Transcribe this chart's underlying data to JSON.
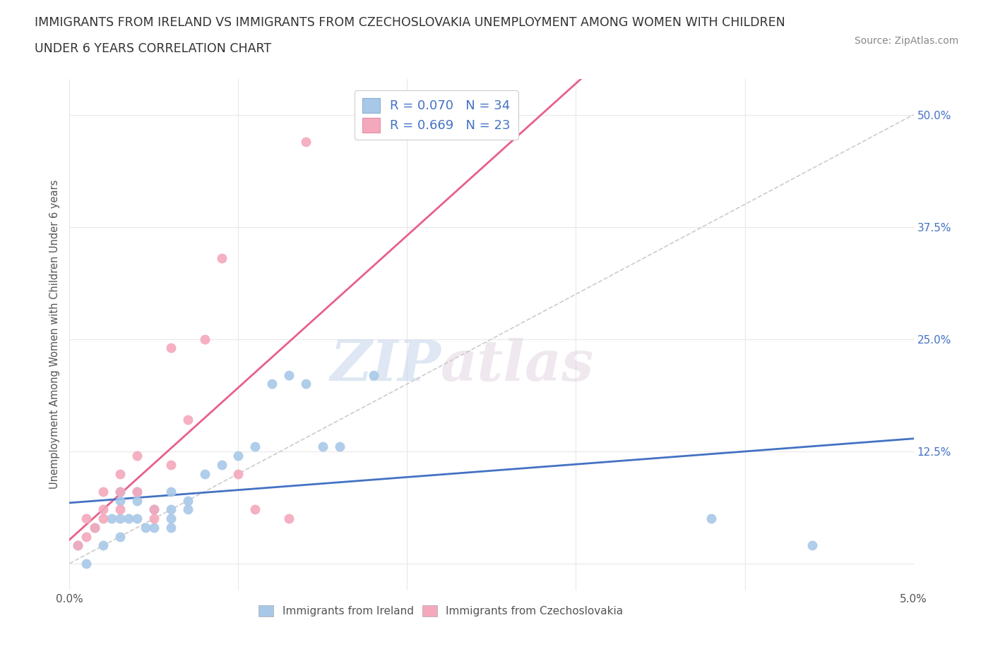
{
  "title_line1": "IMMIGRANTS FROM IRELAND VS IMMIGRANTS FROM CZECHOSLOVAKIA UNEMPLOYMENT AMONG WOMEN WITH CHILDREN",
  "title_line2": "UNDER 6 YEARS CORRELATION CHART",
  "source": "Source: ZipAtlas.com",
  "ylabel": "Unemployment Among Women with Children Under 6 years",
  "xlim": [
    0.0,
    0.05
  ],
  "ylim": [
    -0.03,
    0.54
  ],
  "xticks": [
    0.0,
    0.01,
    0.02,
    0.03,
    0.04,
    0.05
  ],
  "xtick_labels": [
    "0.0%",
    "",
    "",
    "",
    "",
    "5.0%"
  ],
  "yticks": [
    0.0,
    0.125,
    0.25,
    0.375,
    0.5
  ],
  "ytick_labels": [
    "",
    "12.5%",
    "25.0%",
    "37.5%",
    "50.0%"
  ],
  "ireland_color": "#a8c8e8",
  "czechoslovakia_color": "#f4a8bc",
  "ireland_line_color": "#4472c4",
  "czechoslovakia_line_color": "#e8608a",
  "watermark_zip": "ZIP",
  "watermark_atlas": "atlas",
  "ireland_R": 0.07,
  "ireland_N": 34,
  "czechoslovakia_R": 0.669,
  "czechoslovakia_N": 23,
  "ireland_scatter_x": [
    0.0005,
    0.001,
    0.0015,
    0.002,
    0.0025,
    0.003,
    0.003,
    0.003,
    0.003,
    0.0035,
    0.004,
    0.004,
    0.004,
    0.0045,
    0.005,
    0.005,
    0.006,
    0.006,
    0.006,
    0.006,
    0.007,
    0.007,
    0.008,
    0.009,
    0.01,
    0.011,
    0.012,
    0.013,
    0.014,
    0.015,
    0.016,
    0.018,
    0.038,
    0.044
  ],
  "ireland_scatter_y": [
    0.02,
    0.0,
    0.04,
    0.02,
    0.05,
    0.03,
    0.05,
    0.07,
    0.08,
    0.05,
    0.05,
    0.07,
    0.08,
    0.04,
    0.04,
    0.06,
    0.04,
    0.05,
    0.06,
    0.08,
    0.06,
    0.07,
    0.1,
    0.11,
    0.12,
    0.13,
    0.2,
    0.21,
    0.2,
    0.13,
    0.13,
    0.21,
    0.05,
    0.02
  ],
  "czechoslovakia_scatter_x": [
    0.0005,
    0.001,
    0.001,
    0.0015,
    0.002,
    0.002,
    0.002,
    0.003,
    0.003,
    0.003,
    0.004,
    0.004,
    0.005,
    0.005,
    0.006,
    0.006,
    0.007,
    0.008,
    0.009,
    0.01,
    0.011,
    0.013,
    0.014
  ],
  "czechoslovakia_scatter_y": [
    0.02,
    0.03,
    0.05,
    0.04,
    0.05,
    0.06,
    0.08,
    0.06,
    0.08,
    0.1,
    0.08,
    0.12,
    0.05,
    0.06,
    0.11,
    0.24,
    0.16,
    0.25,
    0.34,
    0.1,
    0.06,
    0.05,
    0.47
  ],
  "background_color": "#ffffff",
  "grid_color": "#e8e8e8"
}
